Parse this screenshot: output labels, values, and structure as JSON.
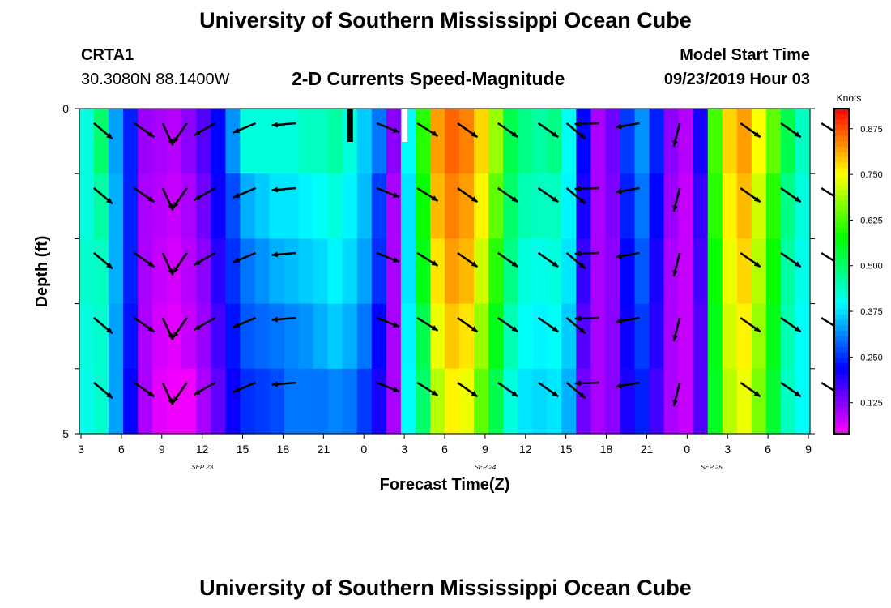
{
  "header": {
    "title": "University of Southern Mississippi Ocean Cube",
    "station": "CRTA1",
    "location": "30.3080N 88.1400W",
    "subtitle": "2-D Currents Speed-Magnitude",
    "model_label": "Model Start Time",
    "model_time": "09/23/2019 Hour 03"
  },
  "footer": {
    "title": "University of Southern Mississippi Ocean Cube"
  },
  "chart_data": {
    "type": "heatmap",
    "xlabel": "Forecast Time(Z)",
    "ylabel": "Depth (ft)",
    "x_tick_labels": [
      "3",
      "6",
      "9",
      "12",
      "15",
      "18",
      "21",
      "0",
      "3",
      "6",
      "9",
      "12",
      "15",
      "18",
      "21",
      "0",
      "3",
      "6",
      "9"
    ],
    "date_labels": [
      {
        "text": "SEP 23",
        "after_tick": 3.0
      },
      {
        "text": "SEP 24",
        "after_tick": 10.0
      },
      {
        "text": "SEP 25",
        "after_tick": 15.6
      }
    ],
    "y_tick_labels": [
      "0",
      "5"
    ],
    "ylim": [
      0,
      5
    ],
    "colorbar": {
      "title": "Knots",
      "ticks": [
        "0.875",
        "0.750",
        "0.625",
        "0.500",
        "0.375",
        "0.250",
        "0.125"
      ],
      "min": 0.04,
      "max": 0.93
    },
    "rows": 5,
    "speed_columns_knots": [
      [
        0.42,
        0.42,
        0.43,
        0.42,
        0.41
      ],
      [
        0.5,
        0.46,
        0.44,
        0.43,
        0.43
      ],
      [
        0.33,
        0.34,
        0.34,
        0.33,
        0.33
      ],
      [
        0.24,
        0.24,
        0.24,
        0.23,
        0.22
      ],
      [
        0.11,
        0.1,
        0.1,
        0.1,
        0.1
      ],
      [
        0.1,
        0.09,
        0.08,
        0.07,
        0.06
      ],
      [
        0.09,
        0.08,
        0.07,
        0.06,
        0.05
      ],
      [
        0.12,
        0.1,
        0.09,
        0.08,
        0.05
      ],
      [
        0.16,
        0.14,
        0.12,
        0.11,
        0.1
      ],
      [
        0.22,
        0.21,
        0.19,
        0.17,
        0.15
      ],
      [
        0.32,
        0.27,
        0.25,
        0.23,
        0.21
      ],
      [
        0.42,
        0.34,
        0.3,
        0.28,
        0.25
      ],
      [
        0.42,
        0.36,
        0.32,
        0.29,
        0.26
      ],
      [
        0.42,
        0.38,
        0.34,
        0.3,
        0.27
      ],
      [
        0.42,
        0.38,
        0.35,
        0.31,
        0.3
      ],
      [
        0.44,
        0.39,
        0.36,
        0.32,
        0.3
      ],
      [
        0.44,
        0.4,
        0.37,
        0.34,
        0.3
      ],
      [
        0.46,
        0.42,
        0.39,
        0.36,
        0.31
      ],
      [
        0.42,
        0.39,
        0.37,
        0.34,
        0.3
      ],
      [
        0.36,
        0.35,
        0.33,
        0.3,
        0.26
      ],
      [
        0.3,
        0.26,
        0.25,
        0.22,
        0.2
      ],
      [
        0.12,
        0.1,
        0.1,
        0.1,
        0.1
      ],
      [
        0.4,
        0.38,
        0.38,
        0.39,
        0.4
      ],
      [
        0.6,
        0.58,
        0.56,
        0.52,
        0.5
      ],
      [
        0.82,
        0.8,
        0.77,
        0.74,
        0.7
      ],
      [
        0.86,
        0.84,
        0.82,
        0.79,
        0.76
      ],
      [
        0.84,
        0.82,
        0.8,
        0.77,
        0.74
      ],
      [
        0.78,
        0.76,
        0.72,
        0.68,
        0.64
      ],
      [
        0.68,
        0.64,
        0.6,
        0.56,
        0.52
      ],
      [
        0.52,
        0.5,
        0.48,
        0.45,
        0.42
      ],
      [
        0.48,
        0.45,
        0.42,
        0.4,
        0.38
      ],
      [
        0.46,
        0.44,
        0.41,
        0.39,
        0.37
      ],
      [
        0.48,
        0.44,
        0.42,
        0.4,
        0.38
      ],
      [
        0.4,
        0.39,
        0.38,
        0.36,
        0.34
      ],
      [
        0.22,
        0.2,
        0.18,
        0.16,
        0.14
      ],
      [
        0.1,
        0.1,
        0.1,
        0.1,
        0.1
      ],
      [
        0.14,
        0.13,
        0.12,
        0.12,
        0.12
      ],
      [
        0.26,
        0.24,
        0.22,
        0.21,
        0.2
      ],
      [
        0.32,
        0.3,
        0.28,
        0.26,
        0.24
      ],
      [
        0.24,
        0.22,
        0.2,
        0.19,
        0.17
      ],
      [
        0.12,
        0.11,
        0.1,
        0.1,
        0.1
      ],
      [
        0.09,
        0.08,
        0.08,
        0.08,
        0.08
      ],
      [
        0.2,
        0.18,
        0.17,
        0.16,
        0.16
      ],
      [
        0.62,
        0.6,
        0.58,
        0.56,
        0.55
      ],
      [
        0.78,
        0.76,
        0.74,
        0.72,
        0.7
      ],
      [
        0.82,
        0.8,
        0.78,
        0.76,
        0.74
      ],
      [
        0.75,
        0.72,
        0.7,
        0.68,
        0.66
      ],
      [
        0.64,
        0.6,
        0.58,
        0.56,
        0.54
      ],
      [
        0.52,
        0.48,
        0.46,
        0.45,
        0.44
      ],
      [
        0.44,
        0.42,
        0.41,
        0.4,
        0.4
      ]
    ],
    "vector_columns": [
      {
        "x_tick": 0.5,
        "angle_deg": 40
      },
      {
        "x_tick": 1.5,
        "angle_deg": 35
      },
      {
        "x_tick": 2.2,
        "angle_deg": 65
      },
      {
        "x_tick": 2.8,
        "angle_deg": 125
      },
      {
        "x_tick": 3.5,
        "angle_deg": 150
      },
      {
        "x_tick": 4.5,
        "angle_deg": 157
      },
      {
        "x_tick": 5.5,
        "angle_deg": 175
      },
      {
        "x_tick": 7.5,
        "angle_deg": 22
      },
      {
        "x_tick": 8.5,
        "angle_deg": 32
      },
      {
        "x_tick": 9.5,
        "angle_deg": 35
      },
      {
        "x_tick": 10.5,
        "angle_deg": 35
      },
      {
        "x_tick": 11.5,
        "angle_deg": 35
      },
      {
        "x_tick": 12.2,
        "angle_deg": 40
      },
      {
        "x_tick": 13.0,
        "angle_deg": 178
      },
      {
        "x_tick": 14.0,
        "angle_deg": 170
      },
      {
        "x_tick": 15.0,
        "angle_deg": 105
      },
      {
        "x_tick": 16.5,
        "angle_deg": 35
      },
      {
        "x_tick": 17.5,
        "angle_deg": 35
      },
      {
        "x_tick": 18.5,
        "angle_deg": 32
      }
    ],
    "markers": [
      {
        "x_tick": 6.65,
        "color": "#000000"
      },
      {
        "x_tick": 8.0,
        "color": "#ffffff"
      }
    ]
  }
}
